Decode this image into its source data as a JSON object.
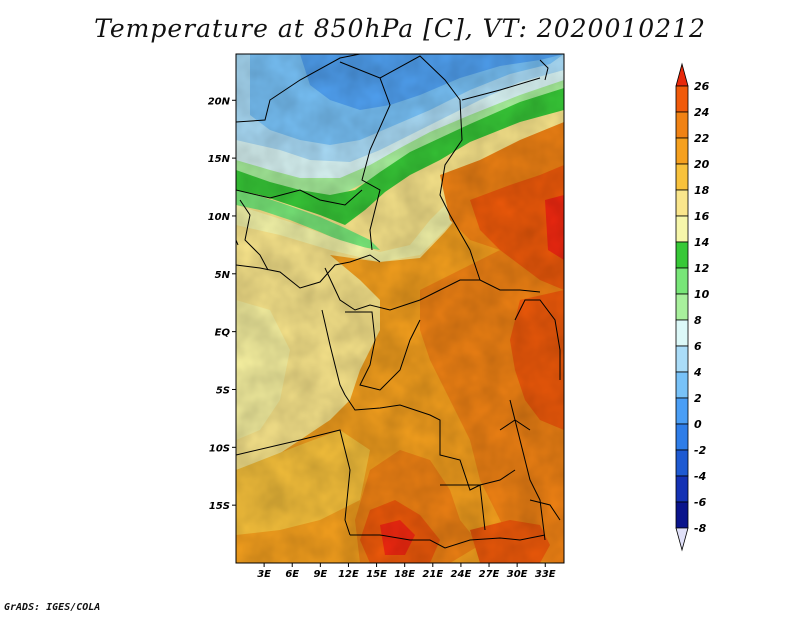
{
  "title": "Temperature at 850hPa [C], VT: 2020010212",
  "footer": "GrADS: IGES/COLA",
  "map": {
    "lon_range": [
      0,
      35
    ],
    "lat_range": [
      -20,
      24
    ],
    "lon_ticks": [
      "3E",
      "6E",
      "9E",
      "12E",
      "15E",
      "18E",
      "21E",
      "24E",
      "27E",
      "30E",
      "33E"
    ],
    "lat_ticks": [
      "20N",
      "15N",
      "10N",
      "5N",
      "EQ",
      "5S",
      "10S",
      "15S"
    ]
  },
  "legend": {
    "labels": [
      "26",
      "24",
      "22",
      "20",
      "18",
      "16",
      "14",
      "12",
      "10",
      "8",
      "6",
      "4",
      "2",
      "0",
      "-2",
      "-4",
      "-6",
      "-8"
    ],
    "colors": [
      "#f02810",
      "#f05a0a",
      "#f08214",
      "#f5a01e",
      "#f8c23c",
      "#fae68c",
      "#f6f6aa",
      "#37c837",
      "#78e678",
      "#a8f09c",
      "#dcf8f8",
      "#aadcf8",
      "#78c2f8",
      "#4a9ef5",
      "#2e7de8",
      "#1e5ad2",
      "#1432b4",
      "#0a148c",
      "#000064"
    ],
    "top_color": "#e8280a",
    "bottom_color": "#e0e0f8"
  }
}
